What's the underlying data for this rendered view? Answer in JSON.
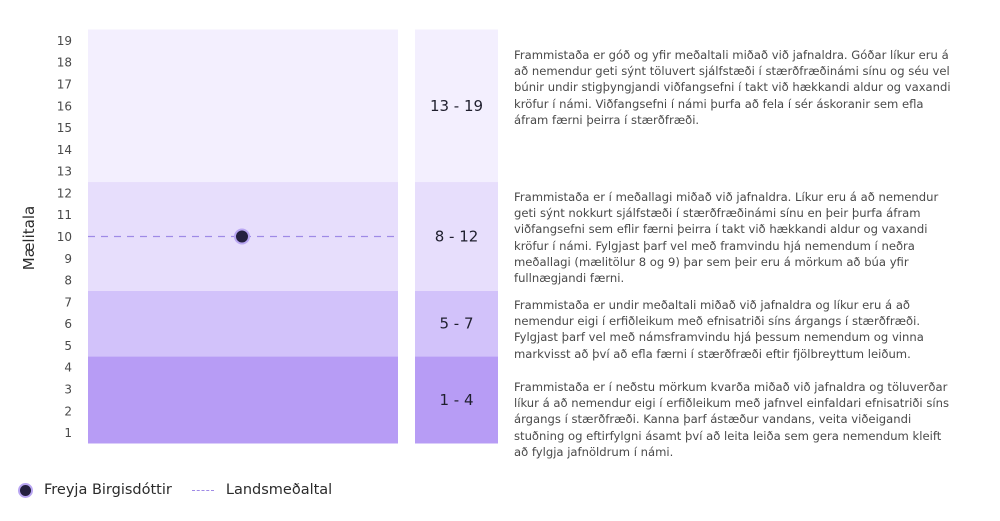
{
  "chart_data": {
    "type": "band",
    "ylabel": "Mælitala",
    "ylim": [
      0.5,
      19.5
    ],
    "yticks": [
      1,
      2,
      3,
      4,
      5,
      6,
      7,
      8,
      9,
      10,
      11,
      12,
      13,
      14,
      15,
      16,
      17,
      18,
      19
    ],
    "bands": [
      {
        "from": 1,
        "to": 4,
        "label": "1 - 4",
        "color": "#b79cf5",
        "text": "Frammistaða er í neðstu mörkum kvarða miðað við jafnaldra og töluverðar líkur á að nemendur eigi í erfiðleikum með jafnvel einfaldari efnisatriði síns árgangs í stærðfræði. Kanna þarf ástæður vandans, veita viðeigandi stuðning og eftirfylgni ásamt því að leita leiða sem gera nemendum kleift að fylgja jafnöldrum í námi."
      },
      {
        "from": 5,
        "to": 7,
        "label": "5 - 7",
        "color": "#d2c2fa",
        "text": "Frammistaða er undir meðaltali miðað við jafnaldra og líkur eru á að nemendur eigi í erfiðleikum með efnisatriði síns árgangs í stærðfræði. Fylgjast þarf vel með námsframvindu hjá þessum nemendum og vinna markvisst að því að efla færni í stærðfræði eftir fjölbreyttum leiðum."
      },
      {
        "from": 8,
        "to": 12,
        "label": "8 - 12",
        "color": "#e7defc",
        "text": "Frammistaða er í meðallagi miðað við jafnaldra. Líkur eru á að nemendur geti sýnt nokkurt sjálfstæði í stærðfræðinámi sínu en þeir þurfa áfram viðfangsefni sem eflir færni þeirra í takt við hækkandi aldur og vaxandi kröfur í námi. Fylgjast þarf vel með framvindu hjá nemendum í neðra meðallagi (mælitölur 8 og 9) þar sem þeir eru á mörkum að búa yfir fullnægjandi færni."
      },
      {
        "from": 13,
        "to": 19,
        "label": "13 - 19",
        "color": "#f3effe",
        "text": "Frammistaða er góð og yfir meðaltali miðað við jafnaldra. Góðar líkur eru á að nemendur geti sýnt töluvert sjálfstæði í stærðfræðinámi sínu og séu vel búnir undir stigþyngjandi viðfangsefni í takt við hækkandi aldur og vaxandi kröfur í námi. Viðfangsefni í námi þurfa að fela í sér áskoranir sem efla áfram færni þeirra í stærðfræði."
      }
    ],
    "series": [
      {
        "name": "Freyja Birgisdóttir",
        "type": "point",
        "value": 10,
        "color": "#242040",
        "outline": "#b9a6f2"
      },
      {
        "name": "Landsmeðaltal",
        "type": "dashed-line",
        "value": 10,
        "color": "#9f8ae6"
      }
    ]
  },
  "legend": {
    "student": "Freyja Birgisdóttir",
    "national": "Landsmeðaltal"
  }
}
